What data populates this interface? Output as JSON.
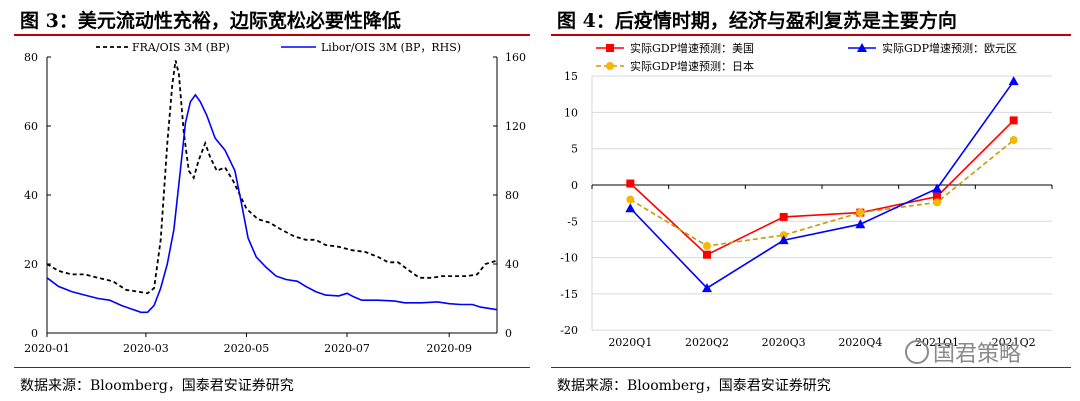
{
  "left_panel": {
    "title": "图 3：美元流动性充裕，边际宽松必要性降低",
    "source": "数据来源：Bloomberg，国泰君安证券研究"
  },
  "right_panel": {
    "title": "图 4：后疫情时期，经济与盈利复苏是主要方向",
    "source": "数据来源：Bloomberg，国泰君安证券研究"
  },
  "watermark": {
    "text": "国君策略",
    "icon": "wechat-icon"
  },
  "colors": {
    "rule": "#c00000",
    "blue": "#0000ff",
    "red": "#ff0000",
    "gold": "#f5b800",
    "gold_line": "#c89b00"
  },
  "chart_data": [
    {
      "type": "line",
      "title": "",
      "x_ticks": [
        "2020-01",
        "2020-03",
        "2020-05",
        "2020-07",
        "2020-09"
      ],
      "y_left": {
        "ticks": [
          "0",
          "20",
          "40",
          "60",
          "80"
        ],
        "ylim": [
          0,
          80
        ]
      },
      "y_right": {
        "ticks": [
          "0",
          "40",
          "80",
          "120",
          "160"
        ],
        "ylim": [
          0,
          160
        ],
        "label": ""
      },
      "xlim": [
        "2020-01-01",
        "2020-09-30"
      ],
      "legend_position": "top",
      "series": [
        {
          "name": "FRA/OIS 3M (BP)",
          "axis": "left",
          "style": "dashed",
          "color": "#000000",
          "points": [
            [
              "2020-01-01",
              20
            ],
            [
              "2020-01-08",
              18
            ],
            [
              "2020-01-16",
              17
            ],
            [
              "2020-01-24",
              17
            ],
            [
              "2020-02-01",
              16
            ],
            [
              "2020-02-10",
              15
            ],
            [
              "2020-02-18",
              12.5
            ],
            [
              "2020-02-25",
              12
            ],
            [
              "2020-03-02",
              11.5
            ],
            [
              "2020-03-06",
              13
            ],
            [
              "2020-03-10",
              27
            ],
            [
              "2020-03-14",
              55
            ],
            [
              "2020-03-17",
              72
            ],
            [
              "2020-03-19",
              79
            ],
            [
              "2020-03-21",
              75
            ],
            [
              "2020-03-24",
              58
            ],
            [
              "2020-03-27",
              47
            ],
            [
              "2020-03-30",
              45
            ],
            [
              "2020-04-02",
              50
            ],
            [
              "2020-04-06",
              55
            ],
            [
              "2020-04-09",
              51
            ],
            [
              "2020-04-13",
              47
            ],
            [
              "2020-04-18",
              48
            ],
            [
              "2020-04-23",
              44
            ],
            [
              "2020-05-01",
              36
            ],
            [
              "2020-05-08",
              33
            ],
            [
              "2020-05-15",
              32
            ],
            [
              "2020-05-22",
              30
            ],
            [
              "2020-05-30",
              28
            ],
            [
              "2020-06-06",
              27
            ],
            [
              "2020-06-12",
              27
            ],
            [
              "2020-06-18",
              25.5
            ],
            [
              "2020-06-26",
              25
            ],
            [
              "2020-07-04",
              24
            ],
            [
              "2020-07-12",
              23.5
            ],
            [
              "2020-07-20",
              22
            ],
            [
              "2020-07-26",
              20.5
            ],
            [
              "2020-08-01",
              20.5
            ],
            [
              "2020-08-08",
              18
            ],
            [
              "2020-08-14",
              16
            ],
            [
              "2020-08-21",
              16
            ],
            [
              "2020-08-28",
              16.5
            ],
            [
              "2020-09-04",
              16.5
            ],
            [
              "2020-09-12",
              16.5
            ],
            [
              "2020-09-18",
              17
            ],
            [
              "2020-09-23",
              20
            ],
            [
              "2020-09-30",
              21
            ]
          ]
        },
        {
          "name": "Libor/OIS 3M (BP，RHS)",
          "axis": "right",
          "style": "solid",
          "color": "#0000ff",
          "points": [
            [
              "2020-01-01",
              32
            ],
            [
              "2020-01-08",
              27
            ],
            [
              "2020-01-16",
              24
            ],
            [
              "2020-01-24",
              22
            ],
            [
              "2020-02-01",
              20
            ],
            [
              "2020-02-08",
              19
            ],
            [
              "2020-02-15",
              16
            ],
            [
              "2020-02-21",
              14
            ],
            [
              "2020-02-27",
              12
            ],
            [
              "2020-03-02",
              12
            ],
            [
              "2020-03-06",
              16
            ],
            [
              "2020-03-10",
              26
            ],
            [
              "2020-03-14",
              40
            ],
            [
              "2020-03-18",
              60
            ],
            [
              "2020-03-22",
              95
            ],
            [
              "2020-03-25",
              122
            ],
            [
              "2020-03-28",
              134
            ],
            [
              "2020-03-31",
              138
            ],
            [
              "2020-04-03",
              134
            ],
            [
              "2020-04-07",
              126
            ],
            [
              "2020-04-12",
              113
            ],
            [
              "2020-04-18",
              106
            ],
            [
              "2020-04-24",
              94
            ],
            [
              "2020-04-28",
              75
            ],
            [
              "2020-05-02",
              55
            ],
            [
              "2020-05-07",
              44
            ],
            [
              "2020-05-13",
              38
            ],
            [
              "2020-05-19",
              33
            ],
            [
              "2020-05-25",
              31
            ],
            [
              "2020-06-01",
              30
            ],
            [
              "2020-06-06",
              27
            ],
            [
              "2020-06-12",
              24
            ],
            [
              "2020-06-18",
              22
            ],
            [
              "2020-06-26",
              21.5
            ],
            [
              "2020-07-01",
              23
            ],
            [
              "2020-07-05",
              21
            ],
            [
              "2020-07-10",
              19
            ],
            [
              "2020-07-20",
              19
            ],
            [
              "2020-07-30",
              18.5
            ],
            [
              "2020-08-05",
              17.5
            ],
            [
              "2020-08-15",
              17.5
            ],
            [
              "2020-08-25",
              18
            ],
            [
              "2020-09-01",
              17
            ],
            [
              "2020-09-08",
              16.5
            ],
            [
              "2020-09-15",
              16.5
            ],
            [
              "2020-09-20",
              15
            ],
            [
              "2020-09-30",
              13.5
            ]
          ]
        }
      ]
    },
    {
      "type": "line",
      "title": "",
      "categories": [
        "2020Q1",
        "2020Q2",
        "2020Q3",
        "2020Q4",
        "2021Q1",
        "2021Q2"
      ],
      "y_ticks": [
        "-20",
        "-15",
        "-10",
        "-5",
        "0",
        "5",
        "10",
        "15"
      ],
      "ylim": [
        -20,
        15
      ],
      "grid": true,
      "legend_position": "top",
      "series": [
        {
          "name": "实际GDP增速预测：美国",
          "color": "#ff0000",
          "marker": "square",
          "style": "solid",
          "values": [
            0.2,
            -9.6,
            -4.4,
            -3.8,
            -1.6,
            8.9
          ]
        },
        {
          "name": "实际GDP增速预测：欧元区",
          "color": "#0000ff",
          "marker": "triangle",
          "style": "solid",
          "values": [
            -3.2,
            -14.2,
            -7.6,
            -5.4,
            -0.5,
            14.3
          ]
        },
        {
          "name": "实际GDP增速预测：日本",
          "color": "#c89b00",
          "marker": "circle",
          "style": "dashed",
          "values": [
            -2.0,
            -8.4,
            -6.9,
            -3.8,
            -2.4,
            6.2
          ]
        }
      ]
    }
  ]
}
